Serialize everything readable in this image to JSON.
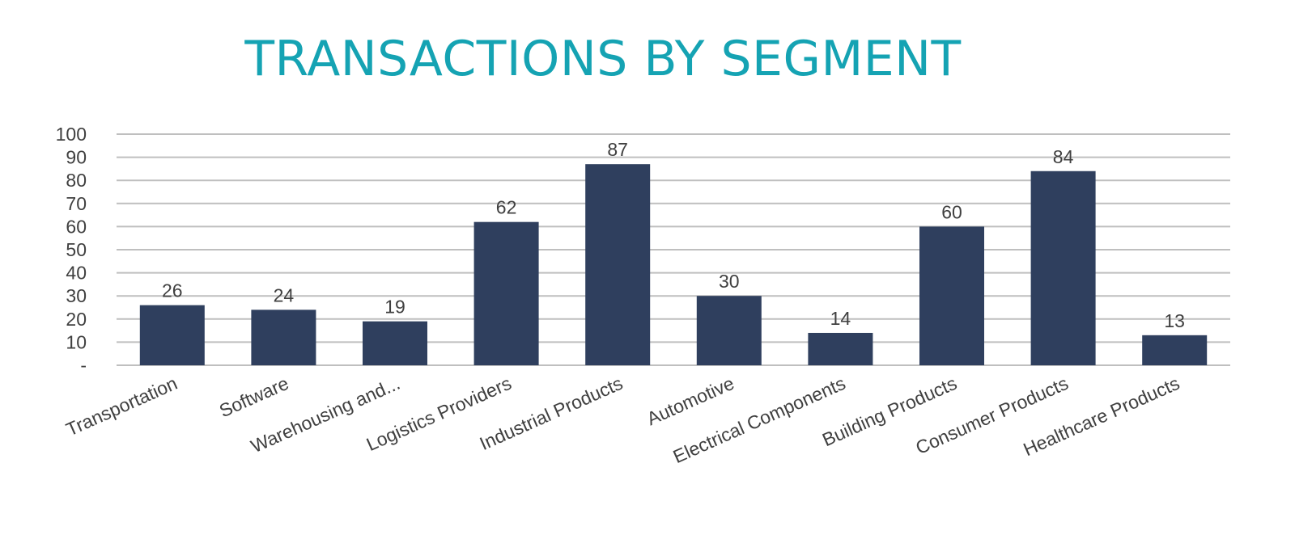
{
  "colors": {
    "title": "#15a3b3",
    "bar": "#2f3f5e",
    "grid": "#bfbfbf",
    "text": "#404040"
  },
  "chart_data": {
    "type": "bar",
    "title": "TRANSACTIONS BY SEGMENT",
    "xlabel": "",
    "ylabel": "",
    "categories": [
      "Transportation",
      "Software",
      "Warehousing and...",
      "Logistics Providers",
      "Industrial Products",
      "Automotive",
      "Electrical Components",
      "Building Products",
      "Consumer Products",
      "Healthcare Products"
    ],
    "values": [
      26,
      24,
      19,
      62,
      87,
      30,
      14,
      60,
      84,
      13
    ],
    "ylim": [
      0,
      100
    ],
    "yticks": [
      "-",
      "10",
      "20",
      "30",
      "40",
      "50",
      "60",
      "70",
      "80",
      "90",
      "100"
    ],
    "grid": true,
    "legend": "none",
    "data_labels": true
  }
}
